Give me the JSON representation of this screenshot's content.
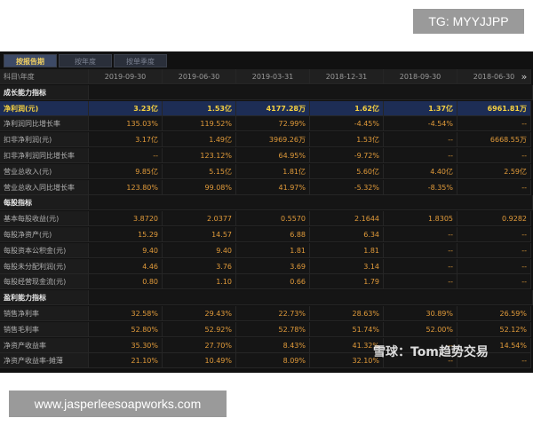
{
  "badge": "TG: MYYJJPP",
  "footer": "www.jasperleesoapworks.com",
  "watermark": "雪球：Tom趋势交易",
  "tabs": [
    "按报告期",
    "按年度",
    "按单季度"
  ],
  "header": {
    "first": "科目\\年度",
    "columns": [
      "2019-09-30",
      "2019-06-30",
      "2019-03-31",
      "2018-12-31",
      "2018-09-30",
      "2018-06-30"
    ],
    "more": "»"
  },
  "sections": [
    {
      "title": "成长能力指标",
      "rows": [
        {
          "label": "净利润(元)",
          "values": [
            "3.23亿",
            "1.53亿",
            "4177.28万",
            "1.62亿",
            "1.37亿",
            "6961.81万"
          ]
        },
        {
          "label": "净利润同比增长率",
          "values": [
            "135.03%",
            "119.52%",
            "72.99%",
            "-4.45%",
            "-4.54%",
            "--"
          ]
        },
        {
          "label": "扣非净利润(元)",
          "values": [
            "3.17亿",
            "1.49亿",
            "3969.26万",
            "1.53亿",
            "--",
            "6668.55万"
          ]
        },
        {
          "label": "扣非净利润同比增长率",
          "values": [
            "--",
            "123.12%",
            "64.95%",
            "-9.72%",
            "--",
            "--"
          ]
        },
        {
          "label": "营业总收入(元)",
          "values": [
            "9.85亿",
            "5.15亿",
            "1.81亿",
            "5.60亿",
            "4.40亿",
            "2.59亿"
          ]
        },
        {
          "label": "营业总收入同比增长率",
          "values": [
            "123.80%",
            "99.08%",
            "41.97%",
            "-5.32%",
            "-8.35%",
            "--"
          ]
        }
      ]
    },
    {
      "title": "每股指标",
      "rows": [
        {
          "label": "基本每股收益(元)",
          "values": [
            "3.8720",
            "2.0377",
            "0.5570",
            "2.1644",
            "1.8305",
            "0.9282"
          ]
        },
        {
          "label": "每股净资产(元)",
          "values": [
            "15.29",
            "14.57",
            "6.88",
            "6.34",
            "--",
            "--"
          ]
        },
        {
          "label": "每股资本公积金(元)",
          "values": [
            "9.40",
            "9.40",
            "1.81",
            "1.81",
            "--",
            "--"
          ]
        },
        {
          "label": "每股未分配利润(元)",
          "values": [
            "4.46",
            "3.76",
            "3.69",
            "3.14",
            "--",
            "--"
          ]
        },
        {
          "label": "每股经营现金流(元)",
          "values": [
            "0.80",
            "1.10",
            "0.66",
            "1.79",
            "--",
            "--"
          ]
        }
      ]
    },
    {
      "title": "盈利能力指标",
      "rows": [
        {
          "label": "销售净利率",
          "values": [
            "32.58%",
            "29.43%",
            "22.73%",
            "28.63%",
            "30.89%",
            "26.59%"
          ]
        },
        {
          "label": "销售毛利率",
          "values": [
            "52.80%",
            "52.92%",
            "52.78%",
            "51.74%",
            "52.00%",
            "52.12%"
          ]
        },
        {
          "label": "净资产收益率",
          "values": [
            "35.30%",
            "27.70%",
            "8.43%",
            "41.32%",
            "--",
            "14.54%"
          ]
        },
        {
          "label": "净资产收益率-摊薄",
          "values": [
            "21.10%",
            "10.49%",
            "8.09%",
            "32.10%",
            "--",
            "--"
          ]
        }
      ]
    }
  ]
}
